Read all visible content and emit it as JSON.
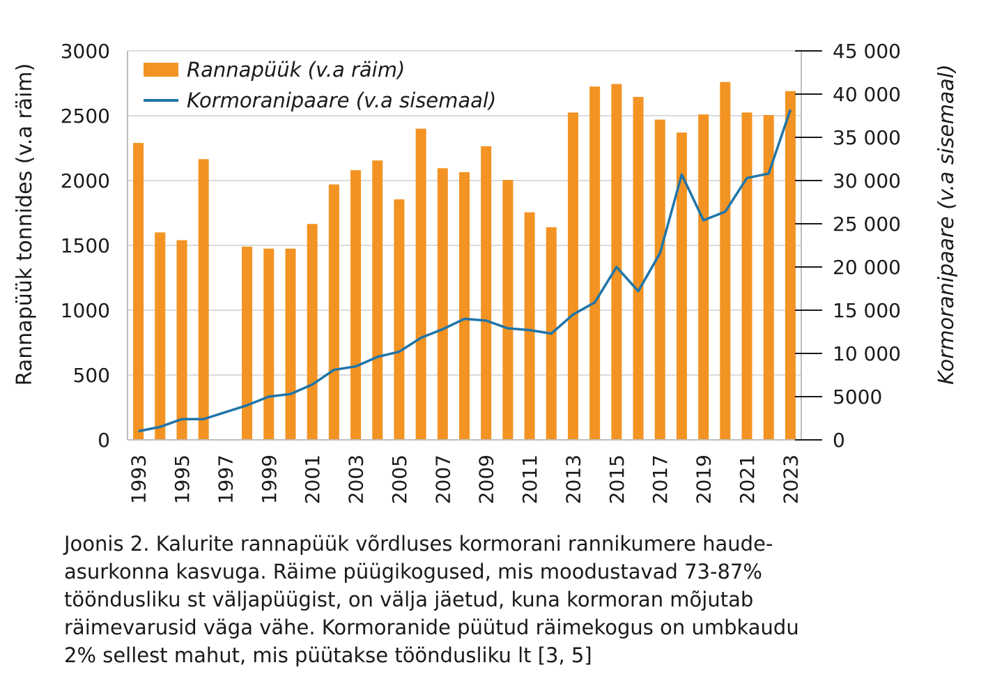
{
  "chart_data": {
    "type": "bar+line",
    "years": [
      1993,
      1994,
      1995,
      1996,
      1997,
      1998,
      1999,
      2000,
      2001,
      2002,
      2003,
      2004,
      2005,
      2006,
      2007,
      2008,
      2009,
      2010,
      2011,
      2012,
      2013,
      2014,
      2015,
      2016,
      2017,
      2018,
      2019,
      2020,
      2021,
      2022,
      2023
    ],
    "x_tick_labels": [
      "1993",
      "1995",
      "1997",
      "1999",
      "2001",
      "2003",
      "2005",
      "2007",
      "2009",
      "2011",
      "2013",
      "2015",
      "2017",
      "2019",
      "2021",
      "2023"
    ],
    "series": [
      {
        "name": "Rannapüük (v.a räim)",
        "kind": "bar",
        "axis": "left",
        "color": "#F39323",
        "values": [
          2290,
          1600,
          1540,
          2165,
          null,
          1490,
          1475,
          1475,
          1665,
          1970,
          2080,
          2155,
          1855,
          2400,
          2095,
          2065,
          2265,
          2005,
          1755,
          1640,
          2525,
          2725,
          2745,
          2645,
          2470,
          2370,
          2510,
          2760,
          2525,
          2505,
          2690
        ]
      },
      {
        "name": "Kormoranipaare (v.a sisemaal)",
        "kind": "line",
        "axis": "right",
        "color": "#1F75A8",
        "values": [
          1000,
          1500,
          2400,
          2400,
          3200,
          4000,
          5000,
          5300,
          6400,
          8100,
          8500,
          9600,
          10200,
          11800,
          12800,
          14000,
          13800,
          12900,
          12700,
          12300,
          14500,
          15900,
          20000,
          17200,
          21600,
          30700,
          25400,
          26400,
          30300,
          30800,
          38200
        ]
      }
    ],
    "left_axis": {
      "label": "Rannapüük tonnides (v.a räim)",
      "ticks": [
        "0",
        "500",
        "1000",
        "1500",
        "2000",
        "2500",
        "3000"
      ],
      "ylim": [
        0,
        3000
      ]
    },
    "right_axis": {
      "label": "Kormoranipaare (v.a sisemaal)",
      "ticks": [
        "0",
        "5000",
        "10 000",
        "15 000",
        "20 000",
        "25 000",
        "30 000",
        "35 000",
        "40 000",
        "45 000"
      ],
      "ylim": [
        0,
        45000
      ]
    },
    "grid": "horizontal",
    "legend_position": "top-left"
  },
  "caption": "Joonis 2. Kalurite rannapüük võrdluses kormorani rannikumere haude-\nasurkonna kasvuga. Räime püügikogused, mis moodustavad 73-87%\ntööndusliku st väljapüügist, on välja jäetud, kuna kormoran mõjutab\nräimevarusid väga vähe. Kormoranide püütud räimekogus on umbkaudu\n2% sellest mahut, mis püütakse tööndusliku lt [3, 5]",
  "caption_lines": [
    "Joonis 2. Kalurite rannapüük võrdluses kormorani rannikumere haude-",
    "asurkonna kasvuga. Räime püügikogused, mis moodustavad 73-87%",
    "tööndusliku st väljapüügist, on välja jäetud, kuna kormoran mõjutab",
    "räimevarusid väga vähe. Kormoranide püütud räimekogus on umbkaudu",
    "2% sellest mahut, mis püütakse tööndusliku lt [3, 5]"
  ]
}
